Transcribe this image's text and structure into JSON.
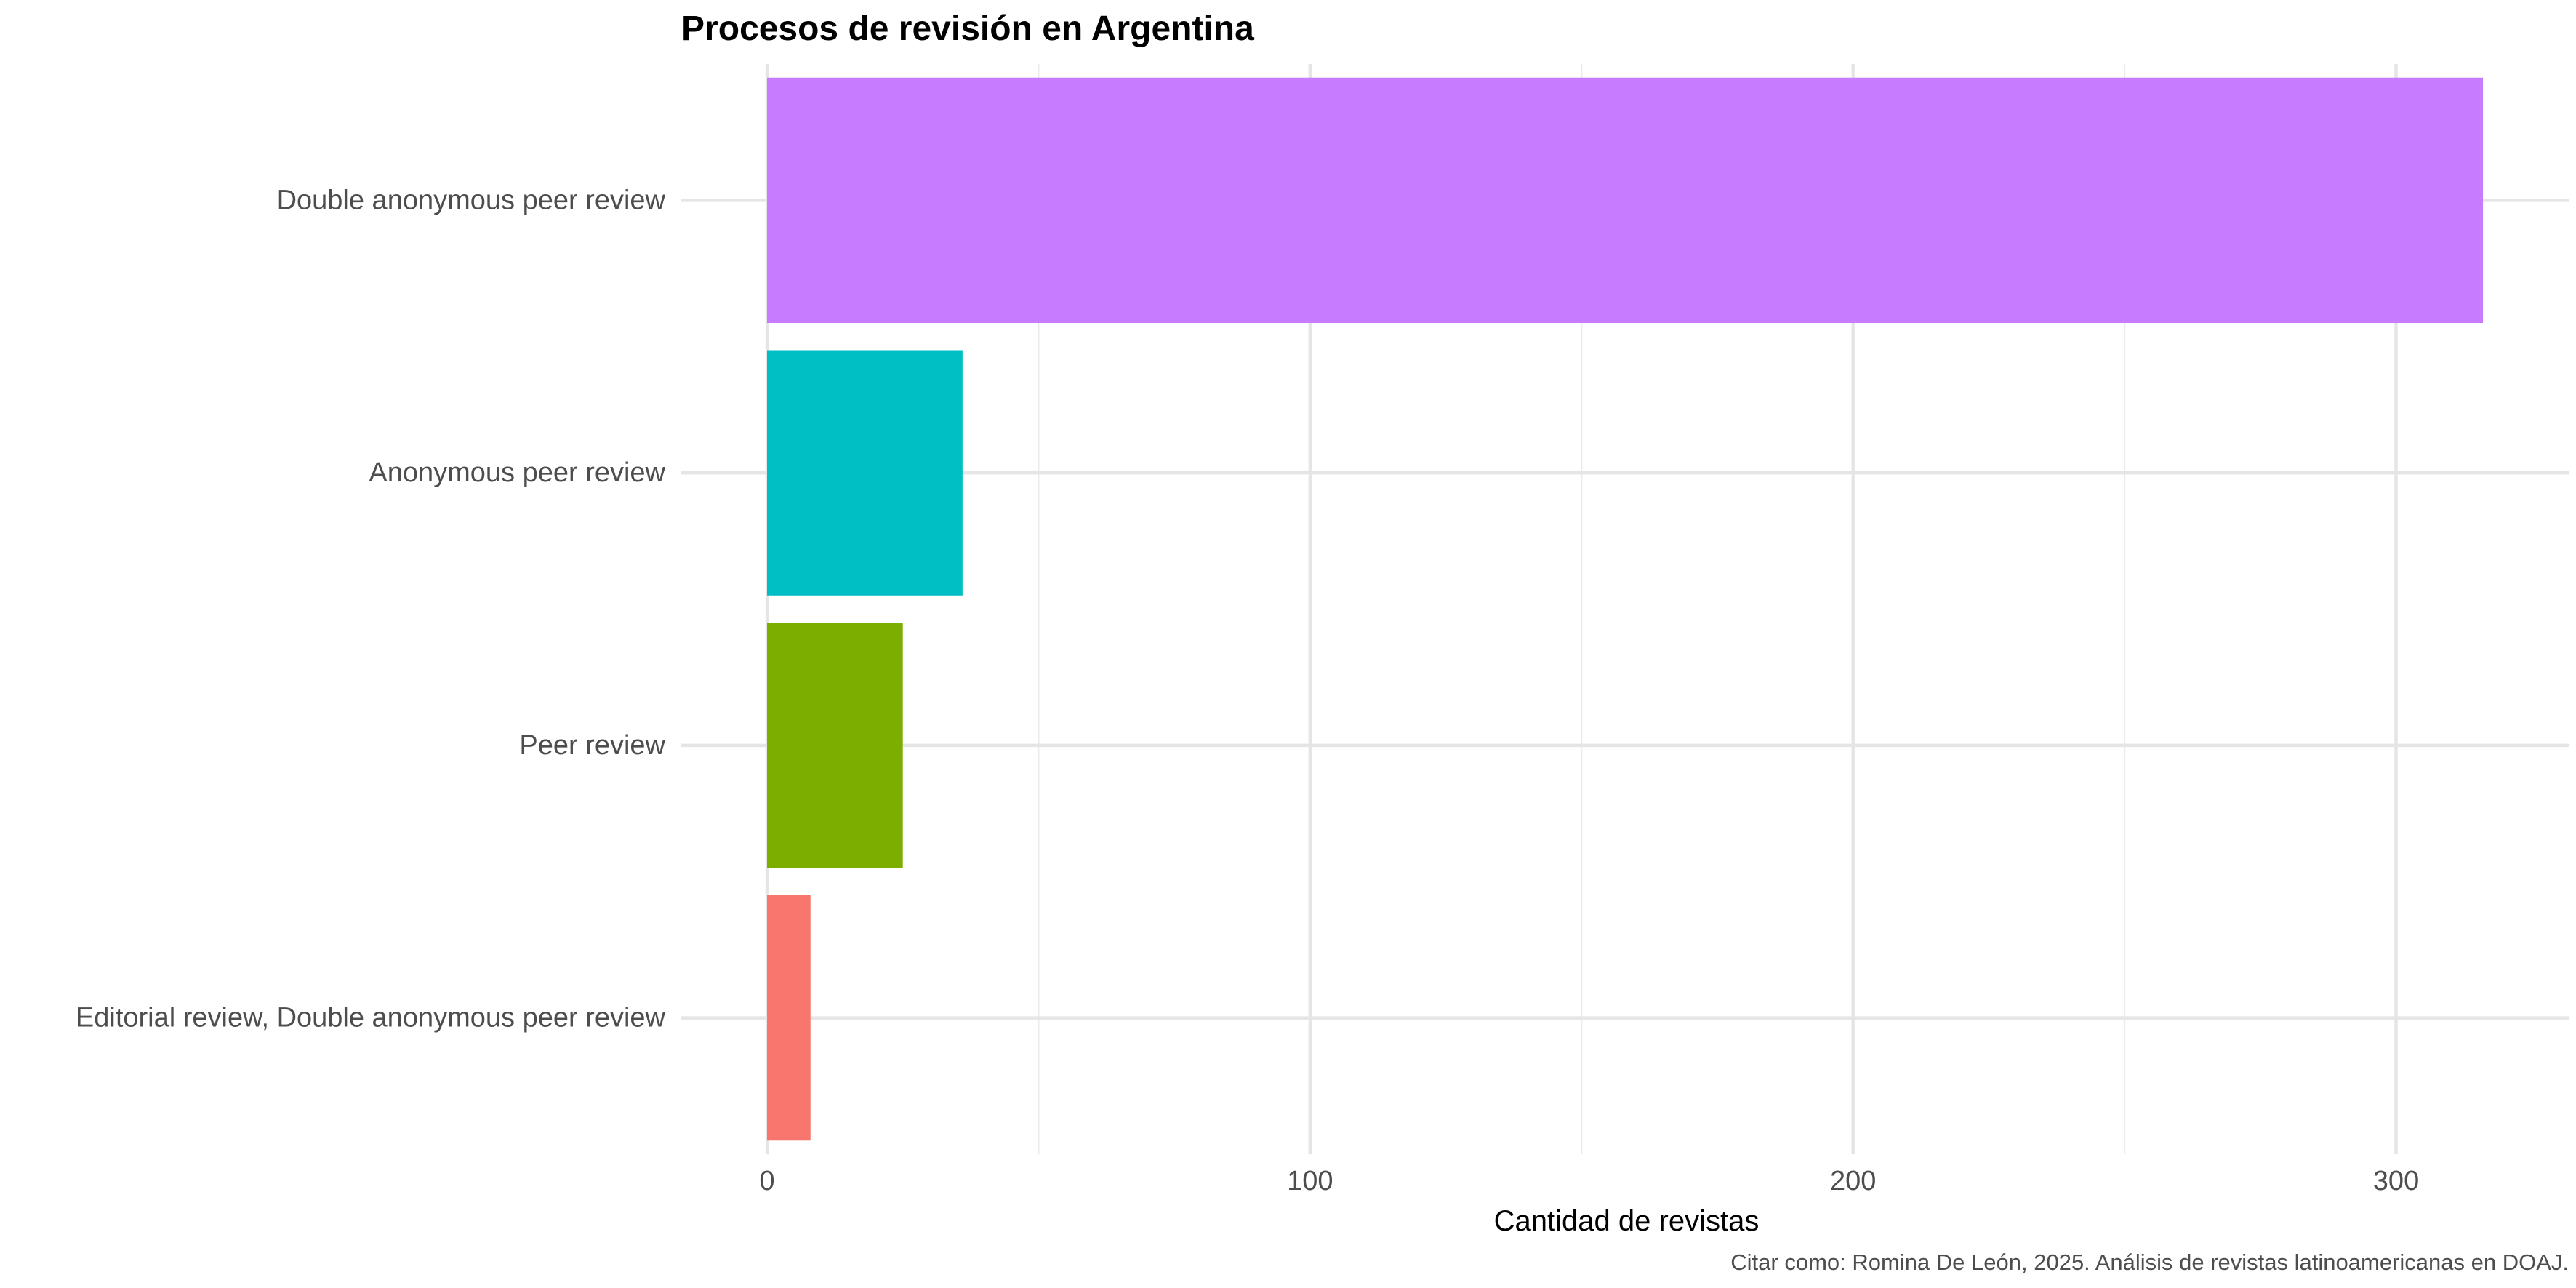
{
  "chart_data": {
    "type": "bar",
    "orientation": "horizontal",
    "title": "Procesos de revisión en Argentina",
    "xlabel": "Cantidad de revistas",
    "ylabel": "",
    "caption": "Citar como: Romina De León, 2025. Análisis de revistas latinoamericanas en DOAJ.",
    "categories": [
      "Double anonymous peer review",
      "Anonymous peer review",
      "Peer review",
      "Editorial review, Double anonymous peer review"
    ],
    "values": [
      316,
      36,
      25,
      8
    ],
    "colors": [
      "#C77CFF",
      "#00BFC4",
      "#7CAE00",
      "#F8766D"
    ],
    "xlim": [
      -15.8,
      331.8
    ],
    "x_ticks": [
      0,
      100,
      200,
      300
    ],
    "x_tick_labels": [
      "0",
      "100",
      "200",
      "300"
    ],
    "x_minor_ticks": [
      50,
      150,
      250
    ],
    "grid": true,
    "legend": "none"
  }
}
